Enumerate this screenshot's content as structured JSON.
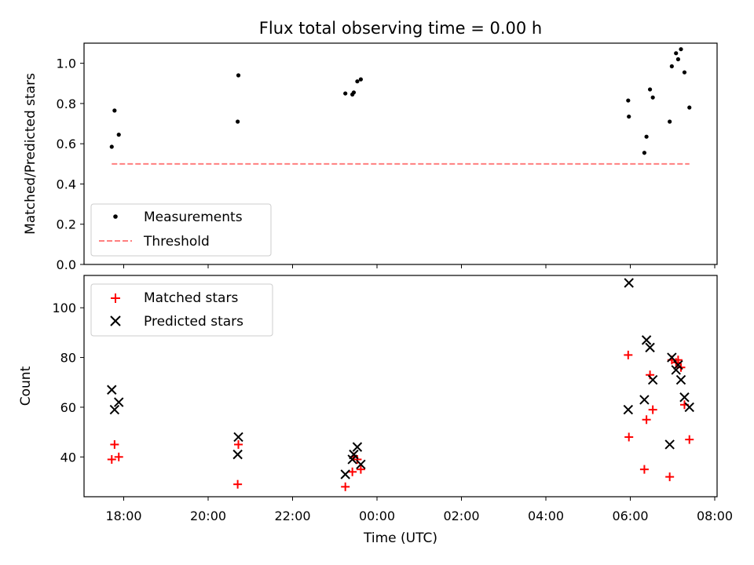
{
  "chart_data": {
    "title": "Flux total observing time = 0.00 h",
    "xlabel": "Time (UTC)",
    "x_ticks": [
      "18:00",
      "20:00",
      "22:00",
      "00:00",
      "02:00",
      "04:00",
      "06:00",
      "08:00"
    ],
    "panels": [
      {
        "type": "scatter",
        "ylabel": "Matched/Predicted stars",
        "ylim": [
          0,
          1.1
        ],
        "y_ticks": [
          "0.0",
          "0.2",
          "0.4",
          "0.6",
          "0.8",
          "1.0"
        ],
        "grid": false,
        "legend_position": "bottom-left",
        "series": [
          {
            "name": "Measurements",
            "marker": "dot",
            "color": "#000000",
            "x": [
              "17:43",
              "17:47",
              "17:53",
              "20:42",
              "20:43",
              "23:15",
              "23:25",
              "23:27",
              "23:32",
              "23:37",
              "05:57",
              "05:58",
              "06:20",
              "06:23",
              "06:28",
              "06:32",
              "06:56",
              "06:59",
              "07:05",
              "07:08",
              "07:12",
              "07:17",
              "07:24"
            ],
            "y": [
              0.585,
              0.765,
              0.645,
              0.71,
              0.94,
              0.85,
              0.845,
              0.855,
              0.91,
              0.92,
              0.815,
              0.735,
              0.555,
              0.635,
              0.87,
              0.83,
              0.71,
              0.985,
              1.05,
              1.02,
              1.07,
              0.955,
              0.78
            ]
          },
          {
            "name": "Threshold",
            "marker": "dashed-line",
            "color": "#ff7f7f",
            "x": [
              "17:43",
              "07:24"
            ],
            "y": [
              0.5,
              0.5
            ]
          }
        ]
      },
      {
        "type": "scatter",
        "ylabel": "Count",
        "ylim": [
          24,
          113
        ],
        "y_ticks": [
          "40",
          "60",
          "80",
          "100"
        ],
        "grid": false,
        "legend_position": "top-left",
        "series": [
          {
            "name": "Matched stars",
            "marker": "plus",
            "color": "#ff0000",
            "x": [
              "17:43",
              "17:47",
              "17:53",
              "20:42",
              "20:43",
              "23:15",
              "23:25",
              "23:27",
              "23:32",
              "23:37",
              "05:57",
              "05:58",
              "06:20",
              "06:23",
              "06:28",
              "06:32",
              "06:56",
              "06:59",
              "07:05",
              "07:08",
              "07:12",
              "07:17",
              "07:24"
            ],
            "y": [
              39,
              45,
              40,
              29,
              45,
              28,
              34,
              40,
              39,
              35,
              81,
              48,
              35,
              55,
              73,
              59,
              32,
              79,
              78,
              79,
              76,
              61,
              47
            ]
          },
          {
            "name": "Predicted stars",
            "marker": "x",
            "color": "#000000",
            "x": [
              "17:43",
              "17:47",
              "17:53",
              "20:42",
              "20:43",
              "23:15",
              "23:25",
              "23:27",
              "23:32",
              "23:37",
              "05:58",
              "05:57",
              "06:20",
              "06:23",
              "06:28",
              "06:32",
              "06:56",
              "06:59",
              "07:05",
              "07:08",
              "07:12",
              "07:17",
              "07:24"
            ],
            "y": [
              67,
              59,
              62,
              41,
              48,
              33,
              39,
              41,
              44,
              37,
              110,
              59,
              63,
              87,
              84,
              71,
              45,
              80,
              75,
              77,
              71,
              64,
              60
            ]
          }
        ]
      }
    ]
  }
}
